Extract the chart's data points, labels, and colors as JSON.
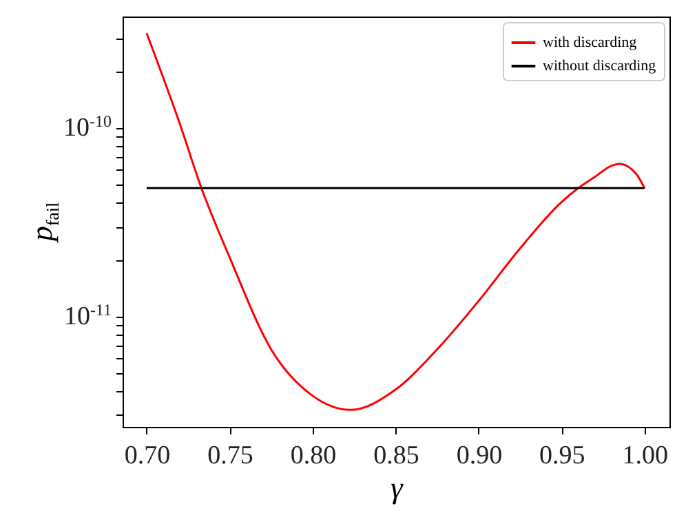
{
  "chart_data": {
    "type": "line",
    "xlabel": "γ",
    "ylabel": "p$_{fail}$",
    "log": "y",
    "legend": "top right",
    "grid": false,
    "xlim": [
      0.6855,
      1.015
    ],
    "xticks": [
      {
        "value": 0.7,
        "label": "0.70"
      },
      {
        "value": 0.75,
        "label": "0.75"
      },
      {
        "value": 0.8,
        "label": "0.80"
      },
      {
        "value": 0.85,
        "label": "0.85"
      },
      {
        "value": 0.9,
        "label": "0.90"
      },
      {
        "value": 0.95,
        "label": "0.95"
      },
      {
        "value": 1.0,
        "label": "1.00"
      }
    ],
    "ylim": [
      2.6e-12,
      3.9e-10
    ],
    "yticks": [
      {
        "value": 3e-12,
        "label": null
      },
      {
        "value": 4e-12,
        "label": null
      },
      {
        "value": 5e-12,
        "label": null
      },
      {
        "value": 6e-12,
        "label": null
      },
      {
        "value": 7e-12,
        "label": null
      },
      {
        "value": 8e-12,
        "label": null
      },
      {
        "value": 9e-12,
        "label": null
      },
      {
        "value": 1e-11,
        "label": "10$^{-11}$"
      },
      {
        "value": 2e-11,
        "label": null
      },
      {
        "value": 3e-11,
        "label": null
      },
      {
        "value": 4e-11,
        "label": null
      },
      {
        "value": 5e-11,
        "label": null
      },
      {
        "value": 6e-11,
        "label": null
      },
      {
        "value": 7e-11,
        "label": null
      },
      {
        "value": 8e-11,
        "label": null
      },
      {
        "value": 9e-11,
        "label": null
      },
      {
        "value": 1e-10,
        "label": "10$^{-10}$"
      },
      {
        "value": 2e-10,
        "label": null
      },
      {
        "value": 3e-10,
        "label": null
      }
    ],
    "series": [
      {
        "name": "with discarding",
        "color": "#ff0000",
        "x": [
          0.7,
          0.72,
          0.733,
          0.75,
          0.775,
          0.8,
          0.823,
          0.85,
          0.875,
          0.9,
          0.925,
          0.95,
          0.96,
          0.97,
          0.98,
          0.985,
          0.995,
          1.0
        ],
        "values": [
          3.18e-10,
          1.05e-10,
          4.8e-11,
          2.06e-11,
          6.7e-12,
          3.8e-12,
          3.2e-12,
          4.1e-12,
          6.7e-12,
          1.21e-11,
          2.3e-11,
          4.05e-11,
          4.8e-11,
          5.5e-11,
          6.3e-11,
          6.45e-11,
          5.7e-11,
          4.8e-11
        ]
      },
      {
        "name": "without discarding",
        "color": "#000000",
        "x": [
          0.7,
          1.0
        ],
        "values": [
          4.8e-11,
          4.8e-11
        ]
      }
    ]
  }
}
